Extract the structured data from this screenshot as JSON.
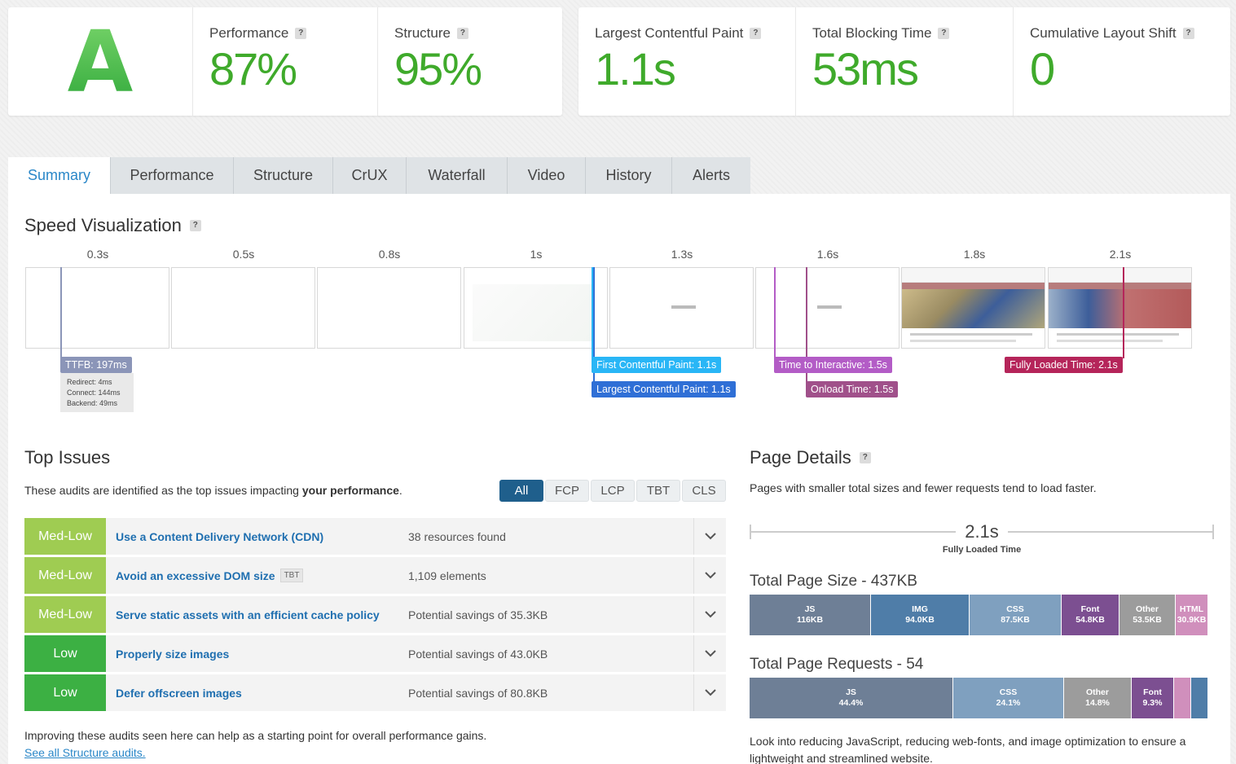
{
  "grade": "A",
  "metrics_left": [
    {
      "label": "Performance",
      "value": "87%"
    },
    {
      "label": "Structure",
      "value": "95%"
    }
  ],
  "metrics_right": [
    {
      "label": "Largest Contentful Paint",
      "value": "1.1s"
    },
    {
      "label": "Total Blocking Time",
      "value": "53ms"
    },
    {
      "label": "Cumulative Layout Shift",
      "value": "0"
    }
  ],
  "help_icon_glyph": "?",
  "tabs": [
    "Summary",
    "Performance",
    "Structure",
    "CrUX",
    "Waterfall",
    "Video",
    "History",
    "Alerts"
  ],
  "speed_viz": {
    "title": "Speed Visualization",
    "times": [
      "0.3s",
      "0.5s",
      "0.8s",
      "1s",
      "1.3s",
      "1.6s",
      "1.8s",
      "2.1s"
    ],
    "markers": {
      "ttfb": "TTFB: 197ms",
      "redirect": "Redirect: 4ms",
      "connect": "Connect: 144ms",
      "backend": "Backend: 49ms",
      "fcp": "First Contentful Paint: 1.1s",
      "lcp": "Largest Contentful Paint: 1.1s",
      "tti": "Time to Interactive: 1.5s",
      "onload": "Onload Time: 1.5s",
      "fully_loaded": "Fully Loaded Time: 2.1s"
    },
    "colors": {
      "ttfb": "#8b95b8",
      "fcp": "#29b6f6",
      "lcp": "#2f6fd6",
      "tti": "#b35cc6",
      "onload": "#a0508a",
      "fully": "#b5255a"
    }
  },
  "top_issues": {
    "title": "Top Issues",
    "desc_prefix": "These audits are identified as the top issues impacting ",
    "desc_bold": "your performance",
    "desc_suffix": ".",
    "filters": [
      "All",
      "FCP",
      "LCP",
      "TBT",
      "CLS"
    ],
    "rows": [
      {
        "severity": "Med-Low",
        "title": "Use a Content Delivery Network (CDN)",
        "tag": "",
        "detail": "38 resources found"
      },
      {
        "severity": "Med-Low",
        "title": "Avoid an excessive DOM size",
        "tag": "TBT",
        "detail": "1,109 elements"
      },
      {
        "severity": "Med-Low",
        "title": "Serve static assets with an efficient cache policy",
        "tag": "",
        "detail": "Potential savings of 35.3KB"
      },
      {
        "severity": "Low",
        "title": "Properly size images",
        "tag": "",
        "detail": "Potential savings of 43.0KB"
      },
      {
        "severity": "Low",
        "title": "Defer offscreen images",
        "tag": "",
        "detail": "Potential savings of 80.8KB"
      }
    ],
    "footer": "Improving these audits seen here can help as a starting point for overall performance gains.",
    "link": "See all Structure audits."
  },
  "page_details": {
    "title": "Page Details",
    "desc": "Pages with smaller total sizes and fewer requests tend to load faster.",
    "fully_loaded_value": "2.1s",
    "fully_loaded_label": "Fully Loaded Time",
    "size_title": "Total Page Size - 437KB",
    "size_segments": [
      {
        "name": "JS",
        "value": "116KB",
        "share": 26.5,
        "color": "#6e7f96"
      },
      {
        "name": "IMG",
        "value": "94.0KB",
        "share": 21.5,
        "color": "#4f7da8"
      },
      {
        "name": "CSS",
        "value": "87.5KB",
        "share": 20.0,
        "color": "#7fa0bf"
      },
      {
        "name": "Font",
        "value": "54.8KB",
        "share": 12.5,
        "color": "#7c4f91"
      },
      {
        "name": "Other",
        "value": "53.5KB",
        "share": 12.2,
        "color": "#9c9c9c"
      },
      {
        "name": "HTML",
        "value": "30.9KB",
        "share": 7.1,
        "color": "#d08fbc"
      }
    ],
    "requests_title": "Total Page Requests - 54",
    "request_segments": [
      {
        "name": "JS",
        "value": "44.4%",
        "share": 44.4,
        "color": "#6e7f96"
      },
      {
        "name": "CSS",
        "value": "24.1%",
        "share": 24.1,
        "color": "#7fa0bf"
      },
      {
        "name": "Other",
        "value": "14.8%",
        "share": 14.8,
        "color": "#9c9c9c"
      },
      {
        "name": "Font",
        "value": "9.3%",
        "share": 9.3,
        "color": "#7c4f91"
      },
      {
        "name": "",
        "value": "",
        "share": 3.7,
        "color": "#d08fbc"
      },
      {
        "name": "",
        "value": "",
        "share": 3.7,
        "color": "#4f7da8"
      }
    ],
    "footer": "Look into reducing JavaScript, reducing web-fonts, and image optimization to ensure a lightweight and streamlined website."
  }
}
